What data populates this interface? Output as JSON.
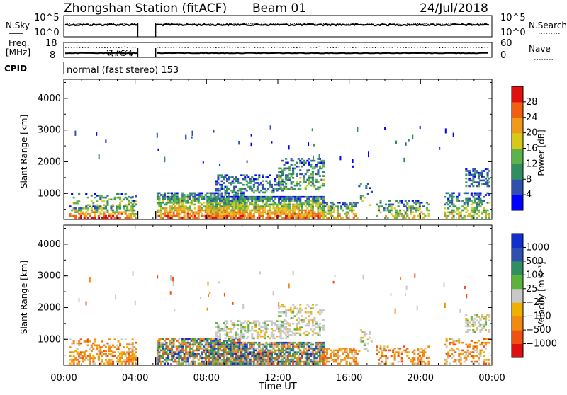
{
  "header": {
    "title": "Zhongshan Station (fitACF)",
    "beam": "Beam 01",
    "date": "24/Jul/2018"
  },
  "meta_panel": {
    "nsky_label": "N.Sky",
    "nsky_scale_top": "10^5",
    "nsky_scale_bottom": "10^0",
    "nsearch_label": "N.Search",
    "nsearch_scale_top": "10^5",
    "nsearch_scale_bottom": "10^0",
    "freq_label": "Freq.",
    "freq_unit": "[MHz]",
    "freq_scale_top": "18",
    "freq_scale_bottom": "8",
    "nave_label": "Nave",
    "nave_scale_top": "60",
    "nave_scale_bottom": "0",
    "cpid_label": "CPID",
    "cpid_value": "normal (fast stereo) 153"
  },
  "colors": {
    "power_scale": [
      "#0000ff",
      "#3050b0",
      "#2f8f60",
      "#5cb34a",
      "#d8c81a",
      "#f09a1a",
      "#f06010",
      "#e01010"
    ],
    "velocity_scale": [
      "#e01010",
      "#f05010",
      "#f08a10",
      "#f0b000",
      "#c8c8c8",
      "#5bb33a",
      "#2f8f60",
      "#3050b0",
      "#1030d0"
    ]
  },
  "chart_data": [
    {
      "type": "heatmap",
      "title": "",
      "xlabel": "",
      "ylabel": "Slant Range [km]",
      "x_ticks": [
        "00:00",
        "04:00",
        "08:00",
        "12:00",
        "16:00",
        "20:00",
        "00:00"
      ],
      "y_ticks": [
        "1000",
        "2000",
        "3000",
        "4000"
      ],
      "ylim": [
        180,
        4600
      ],
      "colorbar": {
        "label": "Power [dB]",
        "ticks": [
          "4",
          "8",
          "12",
          "16",
          "20",
          "24",
          "28"
        ]
      },
      "data_gap_hours": [
        4.15,
        5.15
      ]
    },
    {
      "type": "heatmap",
      "title": "",
      "xlabel": "Time UT",
      "ylabel": "Slant Range [km]",
      "x_ticks": [
        "00:00",
        "04:00",
        "08:00",
        "12:00",
        "16:00",
        "20:00",
        "00:00"
      ],
      "y_ticks": [
        "1000",
        "2000",
        "3000",
        "4000"
      ],
      "ylim": [
        180,
        4600
      ],
      "colorbar": {
        "label": "Velocity [m s⁻¹]",
        "ticks": [
          "1000",
          "500",
          "100",
          "25",
          "−25",
          "−100",
          "−500",
          "−1000"
        ]
      },
      "data_gap_hours": [
        4.15,
        5.15
      ]
    }
  ]
}
